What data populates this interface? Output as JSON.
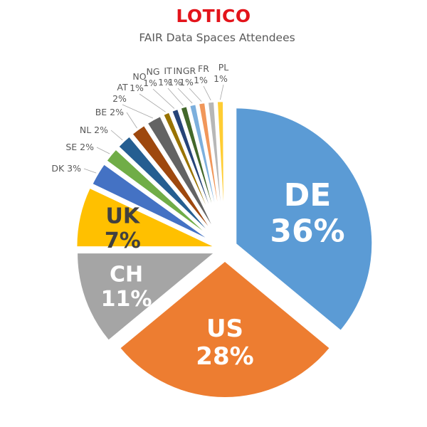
{
  "brand": {
    "name": "LOTICO",
    "color": "#e3141b"
  },
  "chart_data": {
    "type": "pie",
    "title": "FAIR Data Spaces Attendees",
    "start_angle_deg": 0,
    "direction": "clockwise",
    "exploded": true,
    "legend": "none",
    "data_labels": "category + percentage",
    "slices": [
      {
        "label": "DE",
        "value": 36,
        "color": "#5b9bd5",
        "text_color": "#ffffff",
        "label_position": "inside"
      },
      {
        "label": "US",
        "value": 28,
        "color": "#ed7d31",
        "text_color": "#ffffff",
        "label_position": "inside"
      },
      {
        "label": "CH",
        "value": 11,
        "color": "#a5a5a5",
        "text_color": "#ffffff",
        "label_position": "inside"
      },
      {
        "label": "UK",
        "value": 7,
        "color": "#ffc000",
        "text_color": "#404040",
        "label_position": "inside"
      },
      {
        "label": "DK",
        "value": 3,
        "color": "#4472c4",
        "label_position": "outside"
      },
      {
        "label": "SE",
        "value": 2,
        "color": "#70ad47",
        "label_position": "outside"
      },
      {
        "label": "NL",
        "value": 2,
        "color": "#255e91",
        "label_position": "outside"
      },
      {
        "label": "BE",
        "value": 2,
        "color": "#9e480e",
        "label_position": "outside"
      },
      {
        "label": "AT",
        "value": 2,
        "color": "#636363",
        "label_position": "outside"
      },
      {
        "label": "NO",
        "value": 1,
        "color": "#997300",
        "label_position": "outside"
      },
      {
        "label": "NG",
        "value": 1,
        "color": "#264478",
        "label_position": "outside"
      },
      {
        "label": "IT",
        "value": 1,
        "color": "#43682b",
        "label_position": "outside"
      },
      {
        "label": "IN",
        "value": 1,
        "color": "#7cafdd",
        "label_position": "outside"
      },
      {
        "label": "GR",
        "value": 1,
        "color": "#f1975a",
        "label_position": "outside"
      },
      {
        "label": "FR",
        "value": 1,
        "color": "#b7b7b7",
        "label_position": "outside"
      },
      {
        "label": "PL",
        "value": 1,
        "color": "#ffcd33",
        "label_position": "outside"
      }
    ]
  }
}
